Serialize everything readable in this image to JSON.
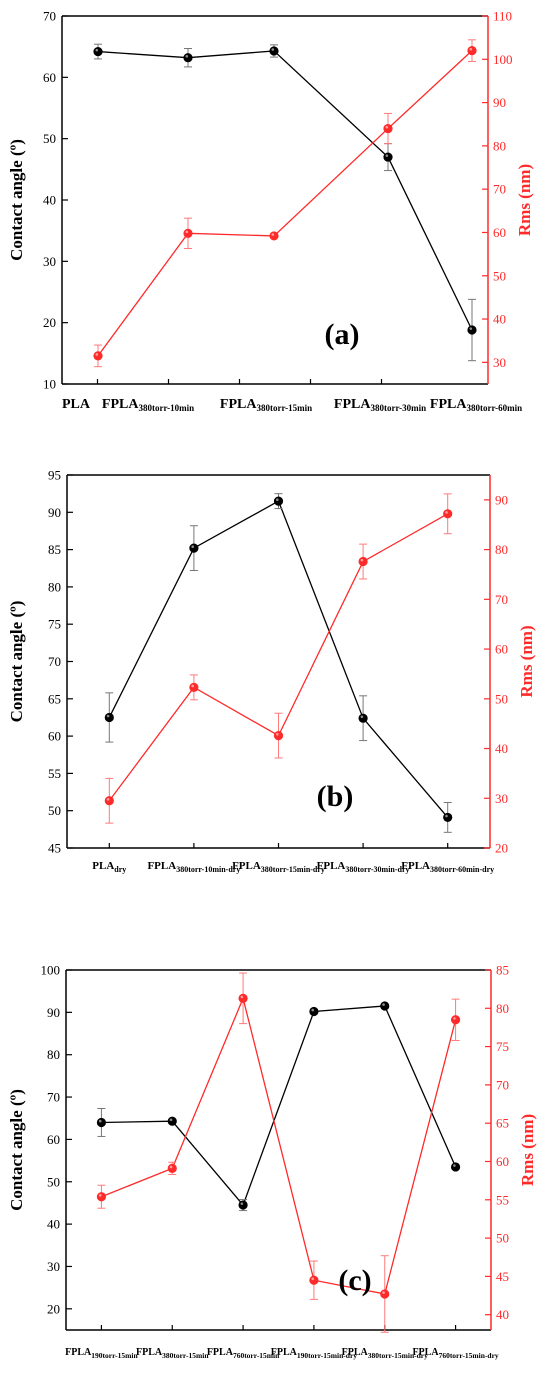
{
  "colors": {
    "left_series": "#000000",
    "right_series": "#ff2a2a",
    "frame": "#000000"
  },
  "chart_data": [
    {
      "type": "line",
      "label": "(a)",
      "ylabel": "Contact angle (º)",
      "y2label": "Rms (nm)",
      "ylim": [
        10,
        70
      ],
      "y2lim": [
        25,
        110
      ],
      "yticks": [
        10,
        20,
        30,
        40,
        50,
        60,
        70
      ],
      "y2ticks": [
        30,
        40,
        50,
        60,
        70,
        80,
        90,
        100,
        110
      ],
      "categories": [
        {
          "base": "PLA",
          "sub": ""
        },
        {
          "base": "FPLA",
          "sub": "380torr-10min"
        },
        {
          "base": "FPLA",
          "sub": "380torr-15min"
        },
        {
          "base": "FPLA",
          "sub": "380torr-30min"
        },
        {
          "base": "FPLA",
          "sub": "380torr-60min"
        }
      ],
      "series": [
        {
          "axis": "left",
          "x": [
            2,
            3,
            4,
            5,
            6
          ],
          "values": [
            64.2,
            63.2,
            64.3,
            47.0,
            18.8
          ],
          "errors": [
            1.2,
            1.5,
            1.0,
            2.2,
            5.0
          ]
        },
        {
          "axis": "right",
          "x": [
            1,
            2,
            3,
            4,
            5
          ],
          "values": [
            31.5,
            59.8,
            59.2,
            84.0,
            102.0
          ],
          "errors": [
            2.5,
            3.5,
            0,
            3.5,
            2.5
          ]
        }
      ]
    },
    {
      "type": "line",
      "label": "(b)",
      "ylabel": "Contact angle (º)",
      "y2label": "Rms (nm)",
      "ylim": [
        45,
        95
      ],
      "y2lim": [
        20,
        95
      ],
      "yticks": [
        45,
        50,
        55,
        60,
        65,
        70,
        75,
        80,
        85,
        90,
        95
      ],
      "y2ticks": [
        20,
        30,
        40,
        50,
        60,
        70,
        80,
        90
      ],
      "categories": [
        {
          "base": "PLA",
          "sub": "dry"
        },
        {
          "base": "FPLA",
          "sub": "380torr-10min-dry"
        },
        {
          "base": "FPLA",
          "sub": "380torr-15min-dry"
        },
        {
          "base": "FPLA",
          "sub": "380torr-30min-dry"
        },
        {
          "base": "FPLA",
          "sub": "380torr-60min-dry"
        }
      ],
      "series": [
        {
          "axis": "left",
          "x": [
            1,
            2,
            3,
            4,
            5
          ],
          "values": [
            62.5,
            85.2,
            91.5,
            62.4,
            49.1
          ],
          "errors": [
            3.3,
            3.0,
            1.0,
            3.0,
            2.0
          ]
        },
        {
          "axis": "right",
          "x": [
            1,
            2,
            3,
            4,
            5
          ],
          "values": [
            29.5,
            52.3,
            42.6,
            77.6,
            87.2
          ],
          "errors": [
            4.5,
            2.5,
            4.5,
            3.5,
            4.0
          ]
        }
      ]
    },
    {
      "type": "line",
      "label": "(c)",
      "ylabel": "Contact angle (º)",
      "y2label": "Rms (nm)",
      "ylim": [
        15,
        100
      ],
      "y2lim": [
        38,
        85
      ],
      "yticks": [
        20,
        30,
        40,
        50,
        60,
        70,
        80,
        90,
        100
      ],
      "y2ticks": [
        40,
        45,
        50,
        55,
        60,
        65,
        70,
        75,
        80,
        85
      ],
      "categories": [
        {
          "base": "FPLA",
          "sub": "190torr-15min"
        },
        {
          "base": "FPLA",
          "sub": "380torr-15min"
        },
        {
          "base": "FPLA",
          "sub": "760torr-15min"
        },
        {
          "base": "FPLA",
          "sub": "190torr-15min-dry"
        },
        {
          "base": "FPLA",
          "sub": "380torr-15min-dry"
        },
        {
          "base": "FPLA",
          "sub": "760torr-15min-dry"
        }
      ],
      "series": [
        {
          "axis": "left",
          "x": [
            1,
            2,
            3,
            4,
            5,
            6
          ],
          "values": [
            64.0,
            64.3,
            44.5,
            90.2,
            91.5,
            53.5
          ],
          "errors": [
            3.3,
            0,
            1.3,
            0,
            0,
            0
          ]
        },
        {
          "axis": "right",
          "x": [
            1,
            2,
            3,
            4,
            5,
            6
          ],
          "values": [
            55.4,
            59.1,
            81.3,
            44.5,
            42.7,
            78.5
          ],
          "errors": [
            1.5,
            0.8,
            3.3,
            2.5,
            5.0,
            2.7
          ]
        }
      ]
    }
  ]
}
